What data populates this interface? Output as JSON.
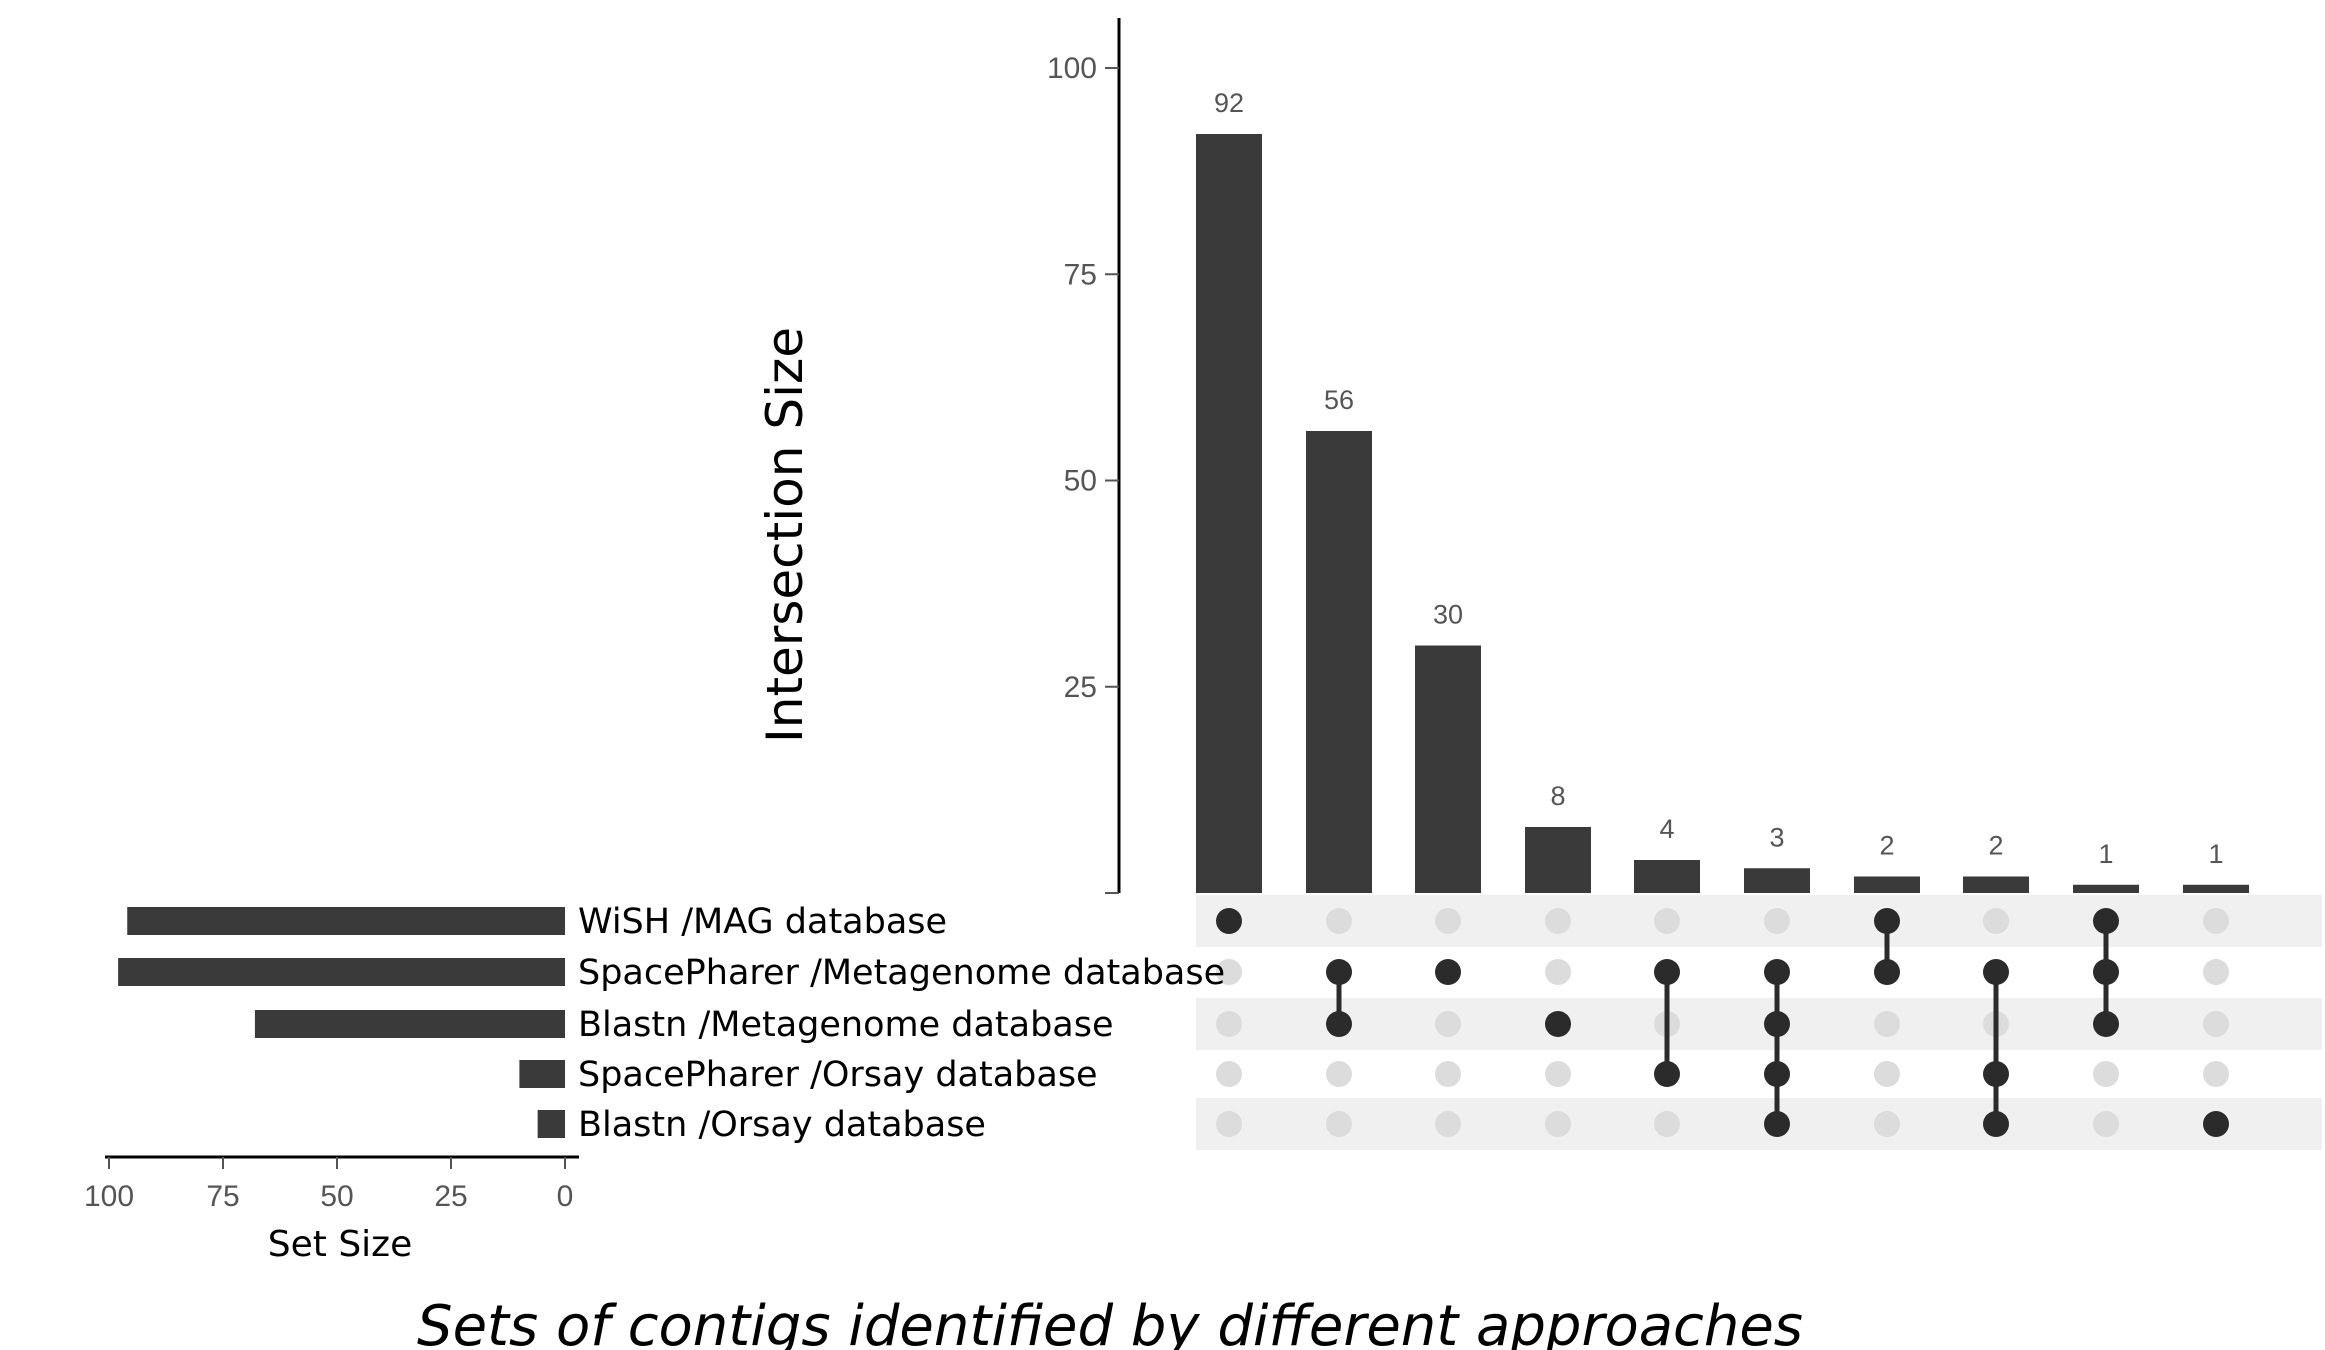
{
  "chart_data": {
    "type": "upset",
    "ylabel": "Intersection Size",
    "set_size_label": "Set Size",
    "caption": "Sets of contigs identified by different approaches",
    "intersection_axis": {
      "ylim": [
        0,
        105
      ],
      "ticks": [
        0,
        25,
        50,
        75,
        100
      ]
    },
    "set_size_axis": {
      "xlim": [
        0,
        100
      ],
      "ticks": [
        100,
        75,
        50,
        25,
        0
      ],
      "reversed": true
    },
    "sets": [
      {
        "name": "WiSH /MAG database",
        "size": 96
      },
      {
        "name": "SpacePharer /Metagenome database",
        "size": 98
      },
      {
        "name": "Blastn /Metagenome database",
        "size": 68
      },
      {
        "name": "SpacePharer /Orsay database",
        "size": 10
      },
      {
        "name": "Blastn /Orsay database",
        "size": 6
      }
    ],
    "intersections": [
      {
        "value": 92,
        "label": "92",
        "sets": [
          0
        ]
      },
      {
        "value": 56,
        "label": "56",
        "sets": [
          1,
          2
        ]
      },
      {
        "value": 30,
        "label": "30",
        "sets": [
          1
        ]
      },
      {
        "value": 8,
        "label": "8",
        "sets": [
          2
        ]
      },
      {
        "value": 4,
        "label": "4",
        "sets": [
          1,
          3
        ]
      },
      {
        "value": 3,
        "label": "3",
        "sets": [
          1,
          2,
          3,
          4
        ]
      },
      {
        "value": 2,
        "label": "2",
        "sets": [
          0,
          1
        ]
      },
      {
        "value": 2,
        "label": "2",
        "sets": [
          1,
          3,
          4
        ]
      },
      {
        "value": 1,
        "label": "1",
        "sets": [
          0,
          1,
          2
        ]
      },
      {
        "value": 1,
        "label": "1",
        "sets": [
          4
        ]
      }
    ],
    "colors": {
      "bar": "#3a3a3a",
      "dot_active": "#2b2b2b",
      "dot_inactive": "#dcdcdc",
      "stripe": "#f0f0f0",
      "axis": "#000000"
    }
  }
}
